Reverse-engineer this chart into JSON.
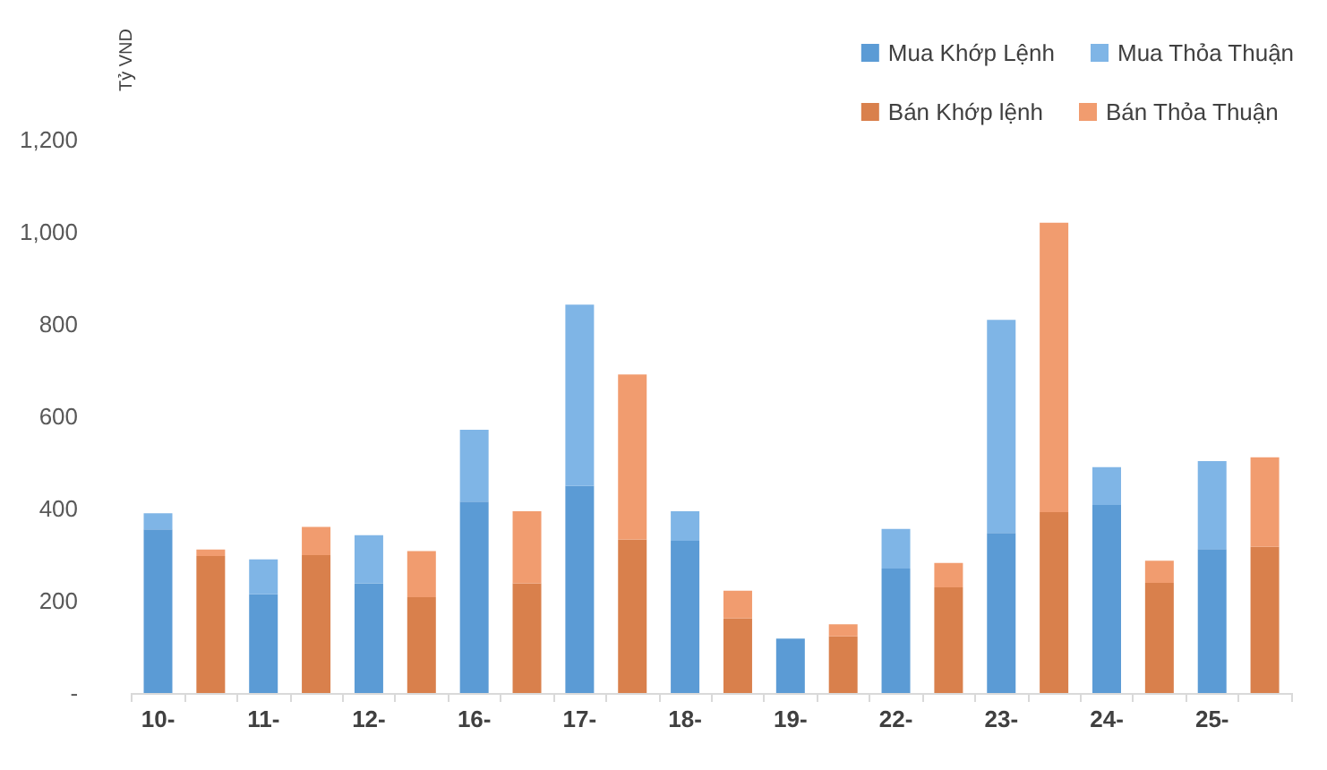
{
  "chart_data": {
    "type": "bar",
    "ylabel": "Tỷ VND",
    "categories": [
      "10-",
      null,
      "11-",
      null,
      "12-",
      null,
      "16-",
      null,
      "17-",
      null,
      "18-",
      null,
      "19-",
      null,
      "22-",
      null,
      "23-",
      null,
      "24-",
      null,
      "25-",
      null
    ],
    "stacked": true,
    "series": [
      {
        "name": "Mua Khớp Lệnh",
        "color": "#5b9bd5",
        "values": [
          355,
          null,
          214,
          null,
          238,
          null,
          415,
          null,
          449,
          null,
          330,
          null,
          118,
          null,
          270,
          null,
          347,
          null,
          408,
          null,
          312,
          null
        ]
      },
      {
        "name": "Mua Thỏa Thuận",
        "color": "#7fb5e6",
        "values": [
          35,
          null,
          76,
          null,
          104,
          null,
          156,
          null,
          393,
          null,
          64,
          null,
          0,
          null,
          86,
          null,
          462,
          null,
          82,
          null,
          191,
          null
        ]
      },
      {
        "name": "Bán Khớp lệnh",
        "color": "#d9804c",
        "values": [
          null,
          297,
          null,
          299,
          null,
          208,
          null,
          238,
          null,
          333,
          null,
          162,
          null,
          123,
          null,
          229,
          null,
          392,
          null,
          239,
          null,
          317
        ]
      },
      {
        "name": "Bán Thỏa Thuận",
        "color": "#f19c6f",
        "values": [
          null,
          14,
          null,
          61,
          null,
          100,
          null,
          156,
          null,
          358,
          null,
          60,
          null,
          26,
          null,
          53,
          null,
          628,
          null,
          48,
          null,
          194
        ]
      }
    ],
    "ylim": [
      0,
      1200
    ],
    "yticks": [
      {
        "value": 0,
        "label": "-"
      },
      200,
      400,
      600,
      800,
      {
        "value": 1000,
        "label": "1,000"
      },
      {
        "value": 1200,
        "label": "1,200"
      }
    ],
    "grid": false,
    "legend": "top right"
  }
}
